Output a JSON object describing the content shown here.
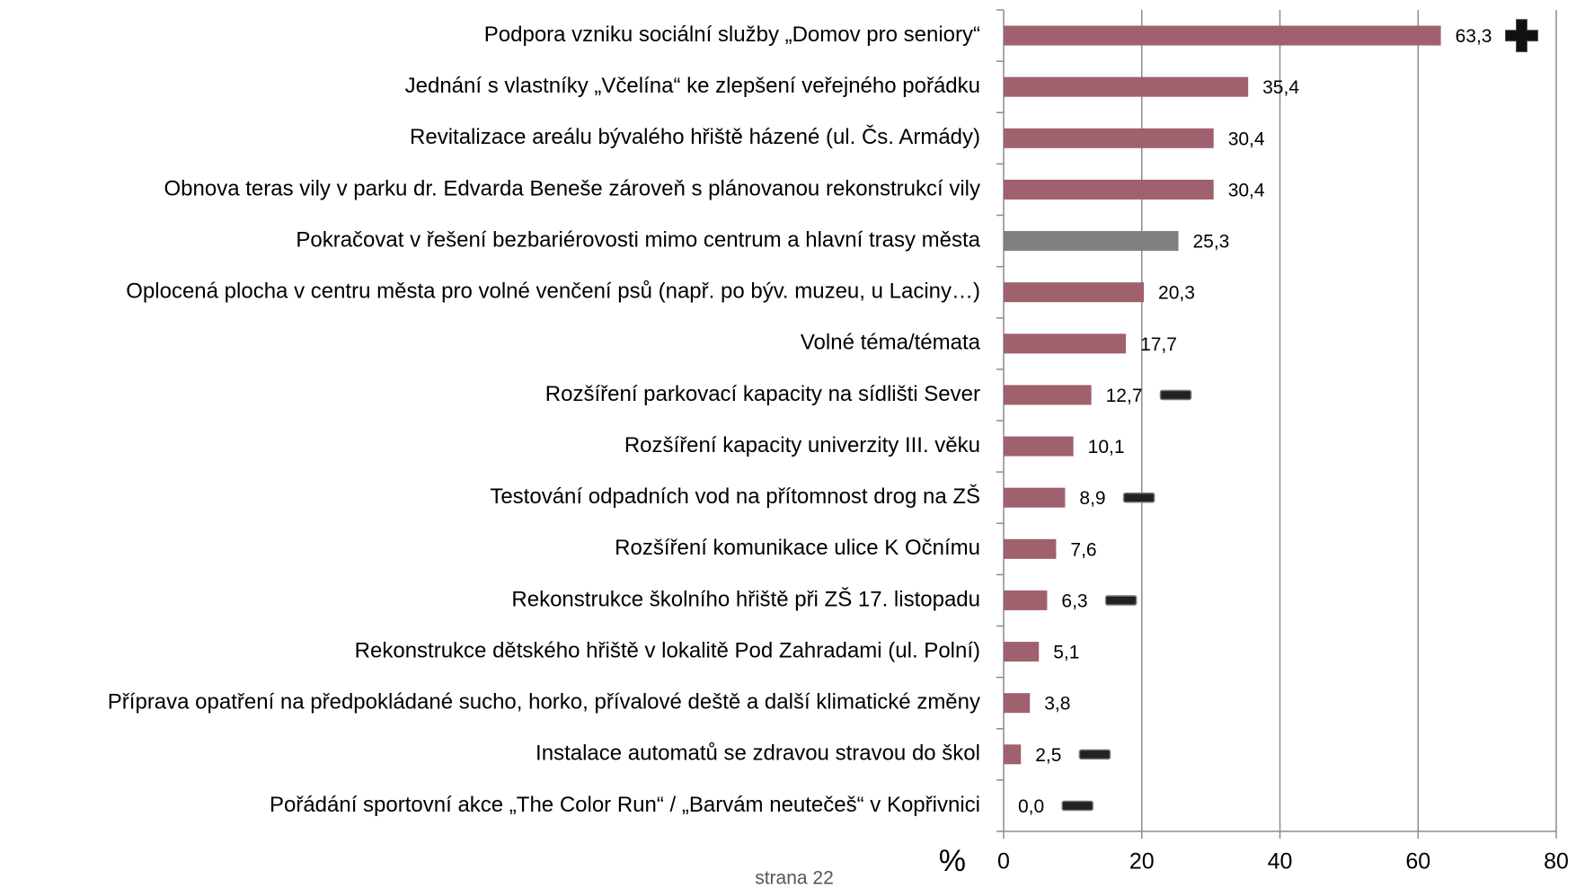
{
  "chart_data": {
    "type": "hbar",
    "categories": [
      "Podpora vzniku sociální služby „Domov pro seniory“",
      "Jednání s vlastníky „Včelína“ ke zlepšení veřejného pořádku",
      "Revitalizace areálu bývalého hřiště házené (ul. Čs. Armády)",
      "Obnova teras vily v parku dr. Edvarda Beneše zároveň s plánovanou rekonstrukcí vily",
      "Pokračovat v řešení bezbariérovosti mimo centrum a hlavní trasy města",
      "Oplocená plocha v centru města pro volné venčení psů (např. po býv. muzeu, u Laciny…)",
      "Volné téma/témata",
      "Rozšíření parkovací kapacity na sídlišti Sever",
      "Rozšíření kapacity univerzity III. věku",
      "Testování odpadních vod na přítomnost drog na ZŠ",
      "Rozšíření komunikace ulice K Očnímu",
      "Rekonstrukce školního hřiště při ZŠ 17. listopadu",
      "Rekonstrukce dětského hřiště v lokalitě Pod Zahradami (ul. Polní)",
      "Příprava opatření na předpokládané sucho, horko, přívalové deště a další klimatické změny",
      "Instalace automatů se zdravou stravou do škol",
      "Pořádání sportovní akce „The Color Run“  / „Barvám neutečeš“ v Kopřivnici"
    ],
    "values": [
      63.3,
      35.4,
      30.4,
      30.4,
      25.3,
      20.3,
      17.7,
      12.7,
      10.1,
      8.9,
      7.6,
      6.3,
      5.1,
      3.8,
      2.5,
      0.0
    ],
    "value_labels": [
      "63,3",
      "35,4",
      "30,4",
      "30,4",
      "25,3",
      "20,3",
      "17,7",
      "12,7",
      "10,1",
      "8,9",
      "7,6",
      "6,3",
      "5,1",
      "3,8",
      "2,5",
      "0,0"
    ],
    "colors": [
      "#a0616f",
      "#a0616f",
      "#a0616f",
      "#a0616f",
      "#808080",
      "#a0616f",
      "#a0616f",
      "#a0616f",
      "#a0616f",
      "#a0616f",
      "#a0616f",
      "#a0616f",
      "#a0616f",
      "#a0616f",
      "#a0616f",
      "#a0616f"
    ],
    "xlim": [
      0,
      80
    ],
    "xticks": [
      0,
      20,
      40,
      60,
      80
    ],
    "x_label": "%",
    "grid": true
  },
  "footer": "strana 22"
}
